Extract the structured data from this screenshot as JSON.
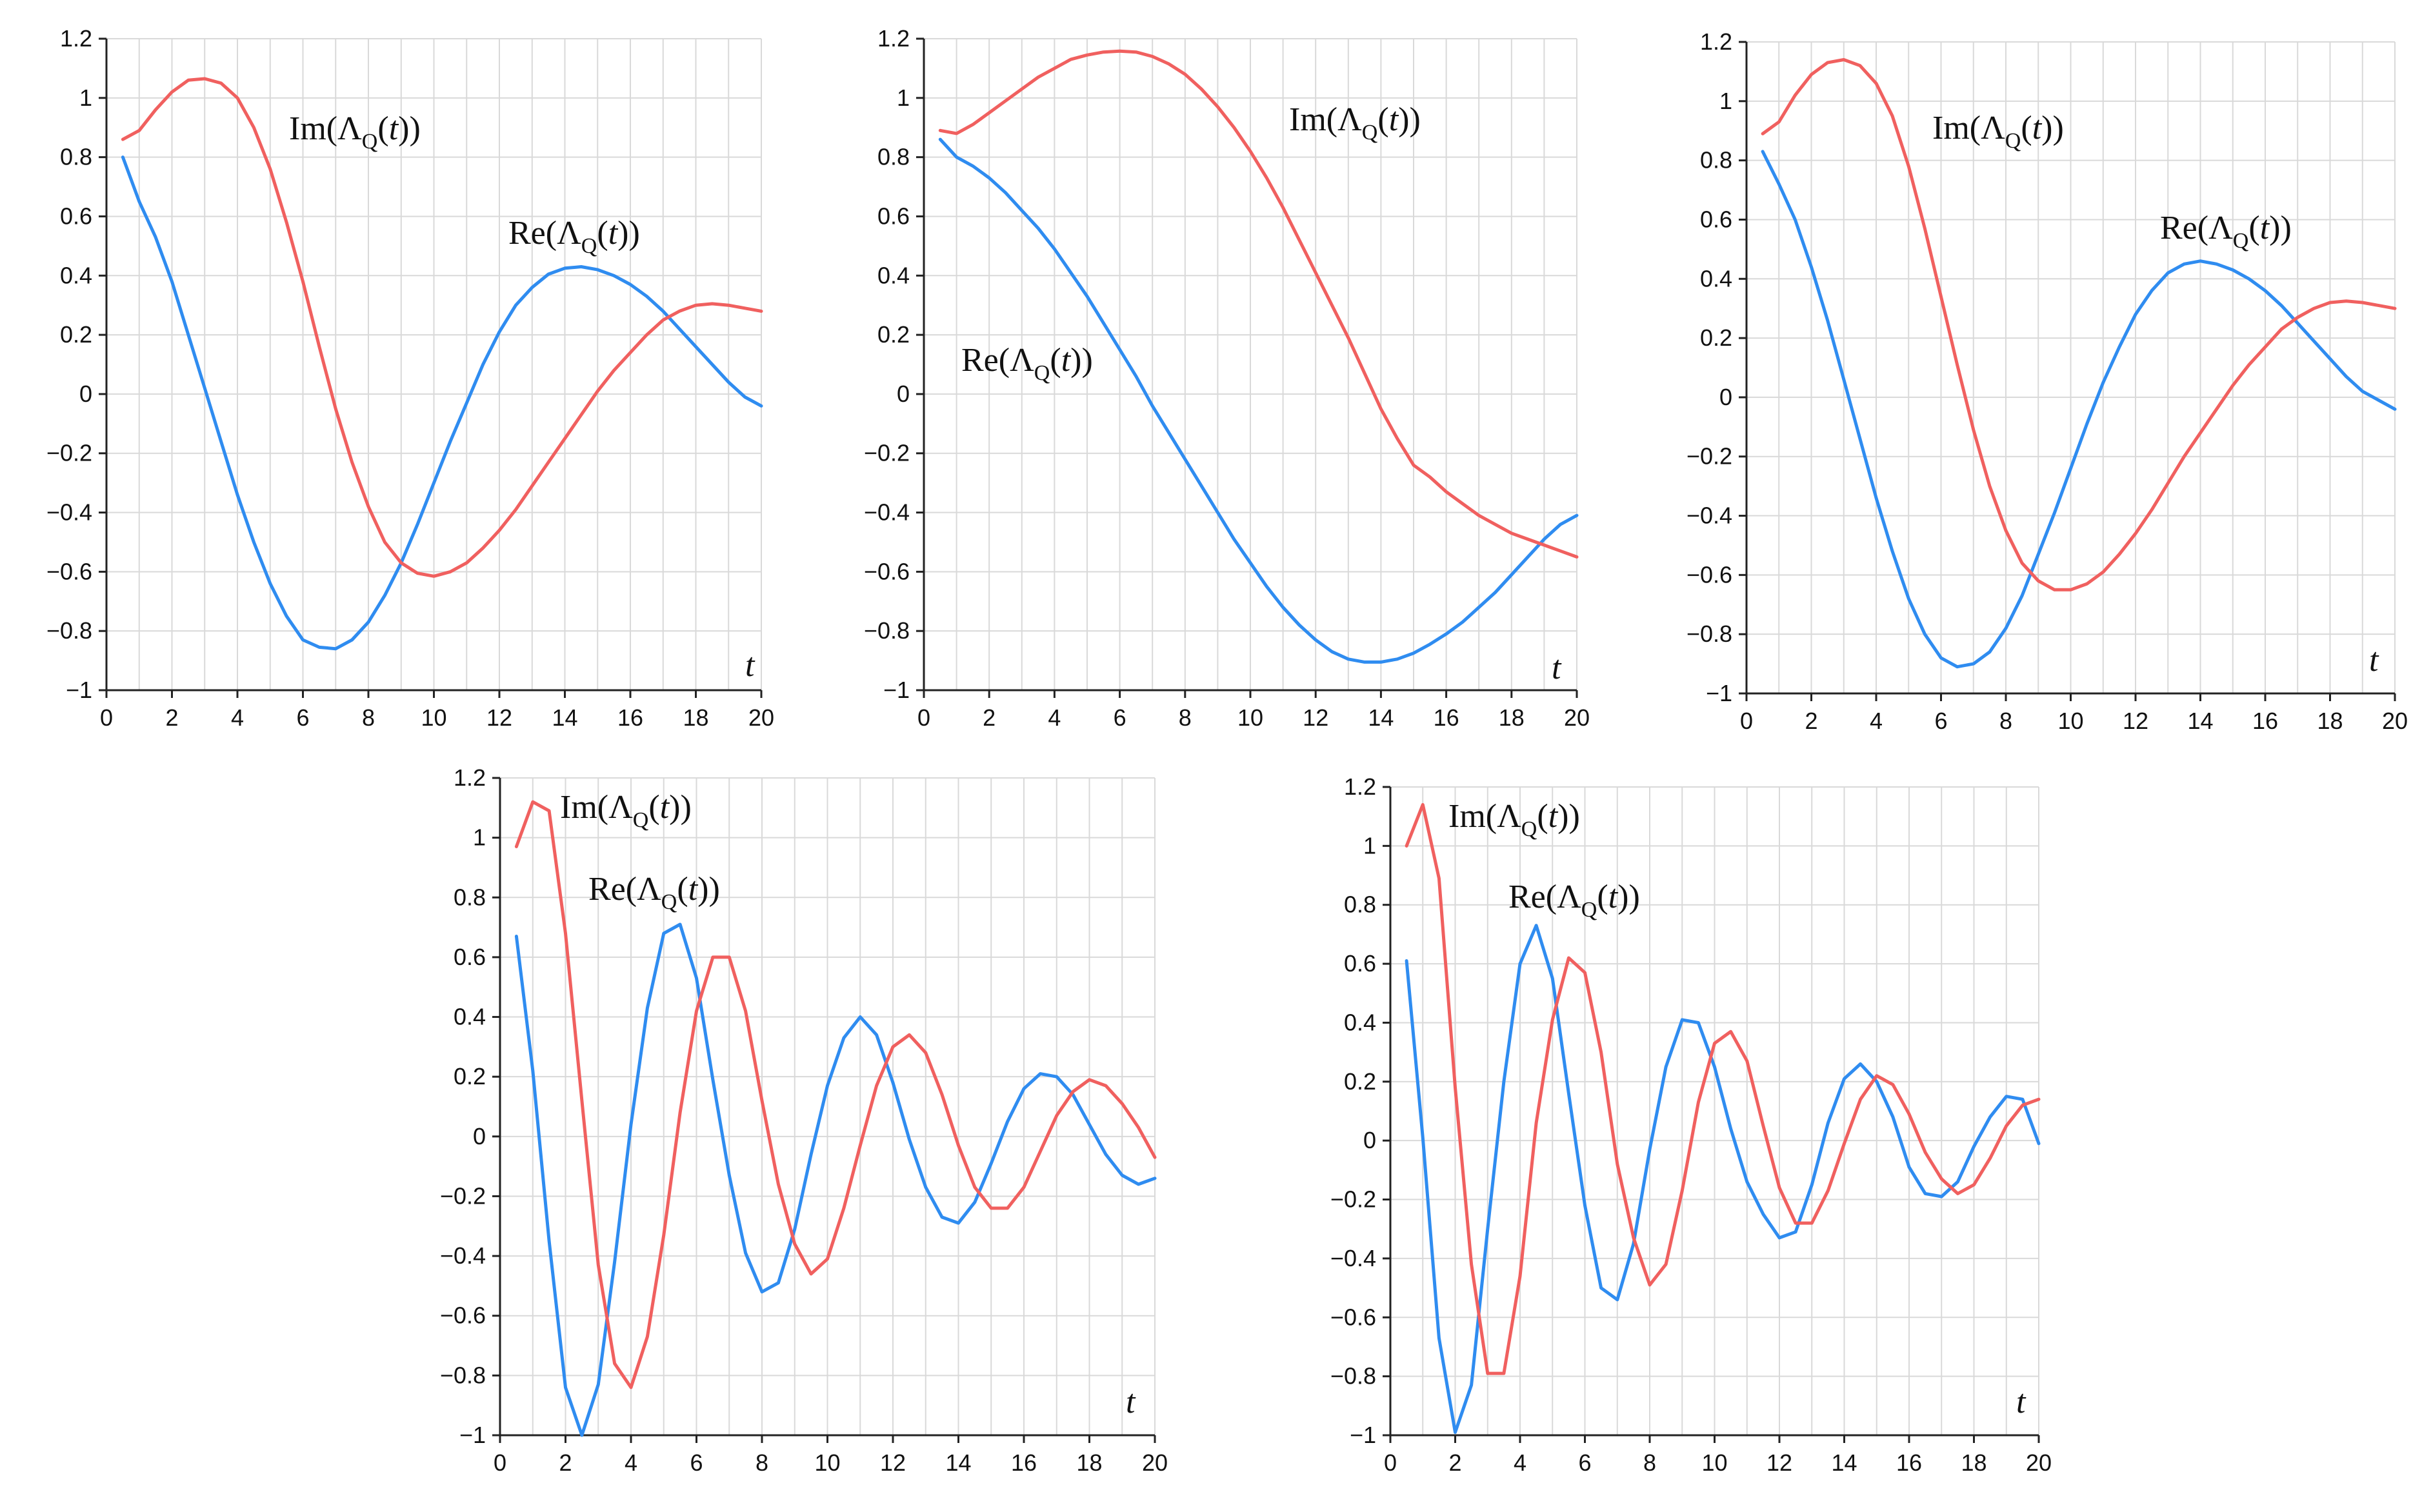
{
  "chart_data": [
    {
      "type": "line",
      "xlim": [
        0,
        20
      ],
      "ylim": [
        -1,
        1.2
      ],
      "xticks": [
        "0",
        "2",
        "4",
        "6",
        "8",
        "10",
        "12",
        "14",
        "16",
        "18",
        "20"
      ],
      "yticks": [
        "1.2",
        "1",
        "0.8",
        "0.6",
        "0.4",
        "0.2",
        "0",
        "-0.2",
        "-0.4",
        "-0.6",
        "-0.8",
        "-1"
      ],
      "xlabel": "t",
      "grid": true,
      "series": [
        {
          "name": "Re",
          "label": "Re(ΛQ(t))",
          "color": "#2f8cf0",
          "x": [
            0.5,
            1,
            1.5,
            2,
            2.5,
            3,
            3.5,
            4,
            4.5,
            5,
            5.5,
            6,
            6.5,
            7,
            7.5,
            8,
            8.5,
            9,
            9.5,
            10,
            10.5,
            11,
            11.5,
            12,
            12.5,
            13,
            13.5,
            14,
            14.5,
            15,
            15.5,
            16,
            16.5,
            17,
            17.5,
            18,
            18.5,
            19,
            19.5,
            20
          ],
          "y": [
            0.8,
            0.65,
            0.53,
            0.38,
            0.2,
            0.02,
            -0.16,
            -0.34,
            -0.5,
            -0.64,
            -0.75,
            -0.83,
            -0.855,
            -0.86,
            -0.83,
            -0.77,
            -0.68,
            -0.57,
            -0.44,
            -0.3,
            -0.16,
            -0.03,
            0.1,
            0.21,
            0.3,
            0.36,
            0.405,
            0.425,
            0.43,
            0.42,
            0.4,
            0.37,
            0.33,
            0.28,
            0.22,
            0.16,
            0.1,
            0.04,
            -0.01,
            -0.04
          ]
        },
        {
          "name": "Im",
          "label": "Im(ΛQ(t))",
          "color": "#f0605f",
          "x": [
            0.5,
            1,
            1.5,
            2,
            2.5,
            3,
            3.5,
            4,
            4.5,
            5,
            5.5,
            6,
            6.5,
            7,
            7.5,
            8,
            8.5,
            9,
            9.5,
            10,
            10.5,
            11,
            11.5,
            12,
            12.5,
            13,
            13.5,
            14,
            14.5,
            15,
            15.5,
            16,
            16.5,
            17,
            17.5,
            18,
            18.5,
            19,
            19.5,
            20
          ],
          "y": [
            0.86,
            0.89,
            0.96,
            1.02,
            1.06,
            1.065,
            1.05,
            1.0,
            0.9,
            0.76,
            0.58,
            0.38,
            0.16,
            -0.05,
            -0.23,
            -0.38,
            -0.5,
            -0.57,
            -0.605,
            -0.615,
            -0.6,
            -0.57,
            -0.52,
            -0.46,
            -0.39,
            -0.31,
            -0.23,
            -0.15,
            -0.07,
            0.01,
            0.08,
            0.14,
            0.2,
            0.25,
            0.28,
            0.3,
            0.305,
            0.3,
            0.29,
            0.28
          ]
        }
      ]
    },
    {
      "type": "line",
      "xlim": [
        0,
        20
      ],
      "ylim": [
        -1,
        1.2
      ],
      "xticks": [
        "0",
        "2",
        "4",
        "6",
        "8",
        "10",
        "12",
        "14",
        "16",
        "18",
        "20"
      ],
      "yticks": [
        "1.2",
        "1",
        "0.8",
        "0.6",
        "0.4",
        "0.2",
        "0",
        "-0.2",
        "-0.4",
        "-0.6",
        "-0.8",
        "-1"
      ],
      "xlabel": "t",
      "grid": true,
      "series": [
        {
          "name": "Re",
          "label": "Re(ΛQ(t))",
          "color": "#2f8cf0",
          "x": [
            0.5,
            1,
            1.5,
            2,
            2.5,
            3,
            3.5,
            4,
            4.5,
            5,
            5.5,
            6,
            6.5,
            7,
            7.5,
            8,
            8.5,
            9,
            9.5,
            10,
            10.5,
            11,
            11.5,
            12,
            12.5,
            13,
            13.5,
            14,
            14.5,
            15,
            15.5,
            16,
            16.5,
            17,
            17.5,
            18,
            18.5,
            19,
            19.5,
            20
          ],
          "y": [
            0.86,
            0.8,
            0.77,
            0.73,
            0.68,
            0.62,
            0.56,
            0.49,
            0.41,
            0.33,
            0.24,
            0.15,
            0.06,
            -0.04,
            -0.13,
            -0.22,
            -0.31,
            -0.4,
            -0.49,
            -0.57,
            -0.65,
            -0.72,
            -0.78,
            -0.83,
            -0.87,
            -0.895,
            -0.905,
            -0.905,
            -0.895,
            -0.875,
            -0.845,
            -0.81,
            -0.77,
            -0.72,
            -0.67,
            -0.61,
            -0.55,
            -0.49,
            -0.44,
            -0.41
          ]
        },
        {
          "name": "Im",
          "label": "Im(ΛQ(t))",
          "color": "#f0605f",
          "x": [
            0.5,
            1,
            1.5,
            2,
            2.5,
            3,
            3.5,
            4,
            4.5,
            5,
            5.5,
            6,
            6.5,
            7,
            7.5,
            8,
            8.5,
            9,
            9.5,
            10,
            10.5,
            11,
            11.5,
            12,
            12.5,
            13,
            13.5,
            14,
            14.5,
            15,
            15.5,
            16,
            16.5,
            17,
            17.5,
            18,
            18.5,
            19,
            19.5,
            20
          ],
          "y": [
            0.89,
            0.88,
            0.91,
            0.95,
            0.99,
            1.03,
            1.07,
            1.1,
            1.13,
            1.145,
            1.155,
            1.158,
            1.155,
            1.14,
            1.115,
            1.08,
            1.03,
            0.97,
            0.9,
            0.82,
            0.73,
            0.63,
            0.52,
            0.41,
            0.3,
            0.19,
            0.07,
            -0.05,
            -0.15,
            -0.24,
            -0.28,
            -0.33,
            -0.37,
            -0.41,
            -0.44,
            -0.47,
            -0.49,
            -0.51,
            -0.53,
            -0.55
          ]
        }
      ]
    },
    {
      "type": "line",
      "xlim": [
        0,
        20
      ],
      "ylim": [
        -1,
        1.2
      ],
      "xticks": [
        "0",
        "2",
        "4",
        "6",
        "8",
        "10",
        "12",
        "14",
        "16",
        "18",
        "20"
      ],
      "yticks": [
        "1.2",
        "1",
        "0.8",
        "0.6",
        "0.4",
        "0.2",
        "0",
        "-0.2",
        "-0.4",
        "-0.6",
        "-0.8",
        "-1"
      ],
      "xlabel": "t",
      "grid": true,
      "series": [
        {
          "name": "Re",
          "label": "Re(ΛQ(t))",
          "color": "#2f8cf0",
          "x": [
            0.5,
            1,
            1.5,
            2,
            2.5,
            3,
            3.5,
            4,
            4.5,
            5,
            5.5,
            6,
            6.5,
            7,
            7.5,
            8,
            8.5,
            9,
            9.5,
            10,
            10.5,
            11,
            11.5,
            12,
            12.5,
            13,
            13.5,
            14,
            14.5,
            15,
            15.5,
            16,
            16.5,
            17,
            17.5,
            18,
            18.5,
            19,
            19.5,
            20
          ],
          "y": [
            0.83,
            0.72,
            0.6,
            0.44,
            0.26,
            0.06,
            -0.14,
            -0.34,
            -0.52,
            -0.68,
            -0.8,
            -0.88,
            -0.91,
            -0.9,
            -0.86,
            -0.78,
            -0.67,
            -0.53,
            -0.39,
            -0.24,
            -0.09,
            0.05,
            0.17,
            0.28,
            0.36,
            0.42,
            0.45,
            0.46,
            0.45,
            0.43,
            0.4,
            0.36,
            0.31,
            0.25,
            0.19,
            0.13,
            0.07,
            0.02,
            -0.01,
            -0.04
          ]
        },
        {
          "name": "Im",
          "label": "Im(ΛQ(t))",
          "color": "#f0605f",
          "x": [
            0.5,
            1,
            1.5,
            2,
            2.5,
            3,
            3.5,
            4,
            4.5,
            5,
            5.5,
            6,
            6.5,
            7,
            7.5,
            8,
            8.5,
            9,
            9.5,
            10,
            10.5,
            11,
            11.5,
            12,
            12.5,
            13,
            13.5,
            14,
            14.5,
            15,
            15.5,
            16,
            16.5,
            17,
            17.5,
            18,
            18.5,
            19,
            19.5,
            20
          ],
          "y": [
            0.89,
            0.93,
            1.02,
            1.09,
            1.13,
            1.14,
            1.12,
            1.06,
            0.95,
            0.78,
            0.57,
            0.34,
            0.11,
            -0.11,
            -0.3,
            -0.45,
            -0.56,
            -0.62,
            -0.65,
            -0.65,
            -0.63,
            -0.59,
            -0.53,
            -0.46,
            -0.38,
            -0.29,
            -0.2,
            -0.12,
            -0.04,
            0.04,
            0.11,
            0.17,
            0.23,
            0.27,
            0.3,
            0.32,
            0.325,
            0.32,
            0.31,
            0.3
          ]
        }
      ]
    },
    {
      "type": "line",
      "xlim": [
        0,
        20
      ],
      "ylim": [
        -1,
        1.2
      ],
      "xticks": [
        "0",
        "2",
        "4",
        "6",
        "8",
        "10",
        "12",
        "14",
        "16",
        "18",
        "20"
      ],
      "yticks": [
        "1.2",
        "1",
        "0.8",
        "0.6",
        "0.4",
        "0.2",
        "0",
        "-0.2",
        "-0.4",
        "-0.6",
        "-0.8",
        "-1"
      ],
      "xlabel": "t",
      "grid": true,
      "series": [
        {
          "name": "Re",
          "label": "Re(ΛQ(t))",
          "color": "#2f8cf0",
          "x": [
            0.5,
            1,
            1.5,
            2,
            2.5,
            3,
            3.5,
            4,
            4.5,
            5,
            5.5,
            6,
            6.5,
            7,
            7.5,
            8,
            8.5,
            9,
            9.5,
            10,
            10.5,
            11,
            11.5,
            12,
            12.5,
            13,
            13.5,
            14,
            14.5,
            15,
            15.5,
            16,
            16.5,
            17,
            17.5,
            18,
            18.5,
            19,
            19.5,
            20
          ],
          "y": [
            0.67,
            0.22,
            -0.35,
            -0.84,
            -1.0,
            -0.83,
            -0.42,
            0.04,
            0.43,
            0.68,
            0.71,
            0.53,
            0.19,
            -0.13,
            -0.39,
            -0.52,
            -0.49,
            -0.31,
            -0.06,
            0.17,
            0.33,
            0.4,
            0.34,
            0.18,
            -0.01,
            -0.17,
            -0.27,
            -0.29,
            -0.22,
            -0.09,
            0.05,
            0.16,
            0.21,
            0.2,
            0.14,
            0.04,
            -0.06,
            -0.13,
            -0.16,
            -0.14
          ]
        },
        {
          "name": "Im",
          "label": "Im(ΛQ(t))",
          "color": "#f0605f",
          "x": [
            0.5,
            1,
            1.5,
            2,
            2.5,
            3,
            3.5,
            4,
            4.5,
            5,
            5.5,
            6,
            6.5,
            7,
            7.5,
            8,
            8.5,
            9,
            9.5,
            10,
            10.5,
            11,
            11.5,
            12,
            12.5,
            13,
            13.5,
            14,
            14.5,
            15,
            15.5,
            16,
            16.5,
            17,
            17.5,
            18,
            18.5,
            19,
            19.5,
            20
          ],
          "y": [
            0.97,
            1.12,
            1.09,
            0.68,
            0.12,
            -0.43,
            -0.76,
            -0.84,
            -0.67,
            -0.33,
            0.08,
            0.42,
            0.6,
            0.6,
            0.42,
            0.12,
            -0.16,
            -0.36,
            -0.46,
            -0.41,
            -0.24,
            -0.03,
            0.17,
            0.3,
            0.34,
            0.28,
            0.14,
            -0.03,
            -0.17,
            -0.24,
            -0.24,
            -0.17,
            -0.05,
            0.07,
            0.15,
            0.19,
            0.17,
            0.11,
            0.03,
            -0.07
          ]
        }
      ]
    },
    {
      "type": "line",
      "xlim": [
        0,
        20
      ],
      "ylim": [
        -1,
        1.2
      ],
      "xticks": [
        "0",
        "2",
        "4",
        "6",
        "8",
        "10",
        "12",
        "14",
        "16",
        "18",
        "20"
      ],
      "yticks": [
        "1.2",
        "1",
        "0.8",
        "0.6",
        "0.4",
        "0.2",
        "0",
        "-0.2",
        "-0.4",
        "-0.6",
        "-0.8",
        "-1"
      ],
      "xlabel": "t",
      "grid": true,
      "series": [
        {
          "name": "Re",
          "label": "Re(ΛQ(t))",
          "color": "#2f8cf0",
          "x": [
            0.5,
            1,
            1.5,
            2,
            2.5,
            3,
            3.5,
            4,
            4.5,
            5,
            5.5,
            6,
            6.5,
            7,
            7.5,
            8,
            8.5,
            9,
            9.5,
            10,
            10.5,
            11,
            11.5,
            12,
            12.5,
            13,
            13.5,
            14,
            14.5,
            15,
            15.5,
            16,
            16.5,
            17,
            17.5,
            18,
            18.5,
            19,
            19.5,
            20
          ],
          "y": [
            0.61,
            0.01,
            -0.67,
            -0.99,
            -0.83,
            -0.3,
            0.2,
            0.6,
            0.73,
            0.55,
            0.16,
            -0.22,
            -0.5,
            -0.54,
            -0.35,
            -0.03,
            0.25,
            0.41,
            0.4,
            0.25,
            0.04,
            -0.14,
            -0.25,
            -0.33,
            -0.31,
            -0.15,
            0.06,
            0.21,
            0.26,
            0.2,
            0.08,
            -0.09,
            -0.18,
            -0.19,
            -0.14,
            -0.02,
            0.08,
            0.15,
            0.14,
            -0.01
          ]
        },
        {
          "name": "Im",
          "label": "Im(ΛQ(t))",
          "color": "#f0605f",
          "x": [
            0.5,
            1,
            1.5,
            2,
            2.5,
            3,
            3.5,
            4,
            4.5,
            5,
            5.5,
            6,
            6.5,
            7,
            7.5,
            8,
            8.5,
            9,
            9.5,
            10,
            10.5,
            11,
            11.5,
            12,
            12.5,
            13,
            13.5,
            14,
            14.5,
            15,
            15.5,
            16,
            16.5,
            17,
            17.5,
            18,
            18.5,
            19,
            19.5,
            20
          ],
          "y": [
            1.0,
            1.14,
            0.89,
            0.18,
            -0.42,
            -0.79,
            -0.79,
            -0.46,
            0.06,
            0.41,
            0.62,
            0.57,
            0.3,
            -0.08,
            -0.33,
            -0.49,
            -0.42,
            -0.17,
            0.13,
            0.33,
            0.37,
            0.27,
            0.05,
            -0.16,
            -0.28,
            -0.28,
            -0.17,
            -0.01,
            0.14,
            0.22,
            0.19,
            0.09,
            -0.04,
            -0.13,
            -0.18,
            -0.15,
            -0.06,
            0.05,
            0.12,
            0.14
          ]
        }
      ]
    }
  ]
}
